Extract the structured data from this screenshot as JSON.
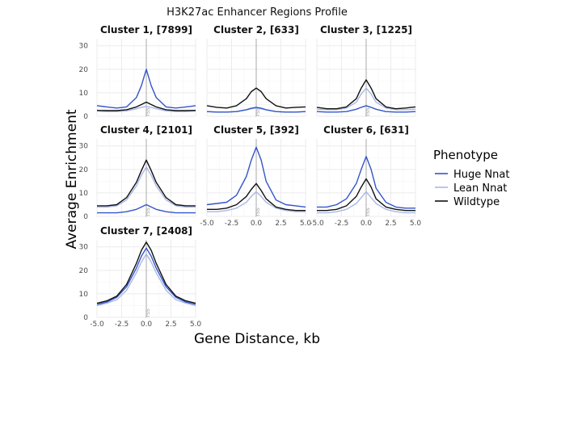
{
  "chart_data": {
    "type": "line",
    "title": "H3K27ac Enhancer Regions Profile",
    "xlabel": "Gene Distance, kb",
    "ylabel": "Average Enrichment",
    "xlim": [
      -5,
      5
    ],
    "ylim": [
      0,
      33
    ],
    "x_ticks": [
      -5.0,
      -2.5,
      0.0,
      2.5,
      5.0
    ],
    "x_tick_labels": [
      "-5.0",
      "-2.5",
      "0.0",
      "2.5",
      "5.0"
    ],
    "y_ticks": [
      0,
      10,
      20,
      30
    ],
    "y_tick_labels": [
      "0",
      "10",
      "20",
      "30"
    ],
    "center_label": "TSS",
    "grid": true,
    "legend": {
      "title": "Phenotype",
      "position": "right",
      "entries": [
        {
          "name": "Huge Nnat",
          "color": "#3355cc"
        },
        {
          "name": "Lean Nnat",
          "color": "#a9b8e8"
        },
        {
          "name": "Wildtype",
          "color": "#111111"
        }
      ]
    },
    "x": [
      -5,
      -4,
      -3,
      -2,
      -1,
      -0.5,
      0,
      0.5,
      1,
      2,
      3,
      4,
      5
    ],
    "panels": [
      {
        "label": "Cluster 1, [7899]",
        "series": [
          {
            "name": "Huge Nnat",
            "values": [
              4.5,
              4,
              3.5,
              4,
              8,
              13,
              20,
              13,
              8,
              4,
              3.5,
              4,
              4.5
            ]
          },
          {
            "name": "Lean Nnat",
            "values": [
              2.2,
              2,
              2,
              2.3,
              3.2,
              3.8,
              4.2,
              3.8,
              3.2,
              2.3,
              2,
              2,
              2.2
            ]
          },
          {
            "name": "Wildtype",
            "values": [
              2.5,
              2.4,
              2.4,
              2.8,
              4,
              5,
              6,
              5,
              4,
              2.8,
              2.4,
              2.4,
              2.5
            ]
          }
        ]
      },
      {
        "label": "Cluster 2, [633]",
        "series": [
          {
            "name": "Huge Nnat",
            "values": [
              2,
              1.8,
              1.8,
              2,
              2.8,
              3.4,
              3.8,
              3.4,
              2.8,
              2,
              1.8,
              1.8,
              2
            ]
          },
          {
            "name": "Lean Nnat",
            "values": [
              2,
              1.8,
              1.8,
              2,
              2.8,
              3.2,
              3.5,
              3.2,
              2.8,
              2,
              1.8,
              1.8,
              2
            ]
          },
          {
            "name": "Wildtype",
            "values": [
              4.5,
              3.8,
              3.5,
              4.5,
              7.5,
              10.5,
              12,
              10.5,
              7.5,
              4.5,
              3.5,
              3.8,
              4
            ]
          }
        ]
      },
      {
        "label": "Cluster 3, [1225]",
        "series": [
          {
            "name": "Huge Nnat",
            "values": [
              2,
              1.8,
              1.8,
              2,
              3,
              3.8,
              4.5,
              3.8,
              3,
              2,
              1.8,
              1.8,
              2
            ]
          },
          {
            "name": "Lean Nnat",
            "values": [
              3,
              2.8,
              2.8,
              3.5,
              6,
              9.5,
              12,
              9.5,
              6,
              3.5,
              2.8,
              2.8,
              3
            ]
          },
          {
            "name": "Wildtype",
            "values": [
              3.8,
              3.2,
              3.2,
              4,
              7.5,
              12,
              15.5,
              12,
              7.5,
              4,
              3.2,
              3.5,
              4
            ]
          }
        ]
      },
      {
        "label": "Cluster 4, [2101]",
        "series": [
          {
            "name": "Huge Nnat",
            "values": [
              1.5,
              1.5,
              1.5,
              2,
              3,
              4,
              5,
              4,
              3,
              2,
              1.5,
              1.5,
              1.5
            ]
          },
          {
            "name": "Lean Nnat",
            "values": [
              4,
              4,
              4.5,
              7,
              13,
              17.5,
              21,
              17.5,
              13,
              7,
              4.5,
              4,
              4
            ]
          },
          {
            "name": "Wildtype",
            "values": [
              4.5,
              4.5,
              5,
              8,
              14.5,
              19.5,
              24,
              19.5,
              14.5,
              8,
              5,
              4.5,
              4.5
            ]
          }
        ]
      },
      {
        "label": "Cluster 5, [392]",
        "series": [
          {
            "name": "Huge Nnat",
            "values": [
              5,
              5.5,
              6,
              9,
              17,
              24,
              29.5,
              24,
              15,
              7,
              5,
              4.5,
              4
            ]
          },
          {
            "name": "Lean Nnat",
            "values": [
              2,
              2,
              2.5,
              3.5,
              6,
              8.5,
              10.5,
              8.5,
              6,
              3.5,
              2.5,
              2,
              2
            ]
          },
          {
            "name": "Wildtype",
            "values": [
              3,
              3,
              3.5,
              5,
              8.5,
              11.5,
              14,
              11,
              7.5,
              4,
              3,
              2.5,
              2.5
            ]
          }
        ]
      },
      {
        "label": "Cluster 6, [631]",
        "series": [
          {
            "name": "Huge Nnat",
            "values": [
              4,
              4,
              5,
              7.5,
              14,
              20,
              25.5,
              20,
              12,
              6,
              4,
              3.5,
              3.5
            ]
          },
          {
            "name": "Lean Nnat",
            "values": [
              1.5,
              1.5,
              2,
              3,
              5.5,
              8,
              10.5,
              8,
              5.5,
              3,
              2,
              1.5,
              1.5
            ]
          },
          {
            "name": "Wildtype",
            "values": [
              2.5,
              2.5,
              3,
              4.5,
              8.5,
              12.5,
              16,
              12.5,
              7.5,
              4,
              3,
              2.5,
              2.5
            ]
          }
        ]
      },
      {
        "label": "Cluster 7, [2408]",
        "series": [
          {
            "name": "Huge Nnat",
            "values": [
              5.5,
              6.5,
              8.5,
              13,
              21,
              26,
              29.5,
              26,
              21,
              13,
              8.5,
              6.5,
              5.5
            ]
          },
          {
            "name": "Lean Nnat",
            "values": [
              5,
              6,
              7.5,
              11.5,
              19,
              23.5,
              27,
              23.5,
              19,
              11.5,
              7.5,
              6,
              5
            ]
          },
          {
            "name": "Wildtype",
            "values": [
              6,
              7,
              9,
              14,
              23,
              28.5,
              32,
              28.5,
              23,
              14,
              9,
              7,
              6
            ]
          }
        ]
      }
    ]
  }
}
